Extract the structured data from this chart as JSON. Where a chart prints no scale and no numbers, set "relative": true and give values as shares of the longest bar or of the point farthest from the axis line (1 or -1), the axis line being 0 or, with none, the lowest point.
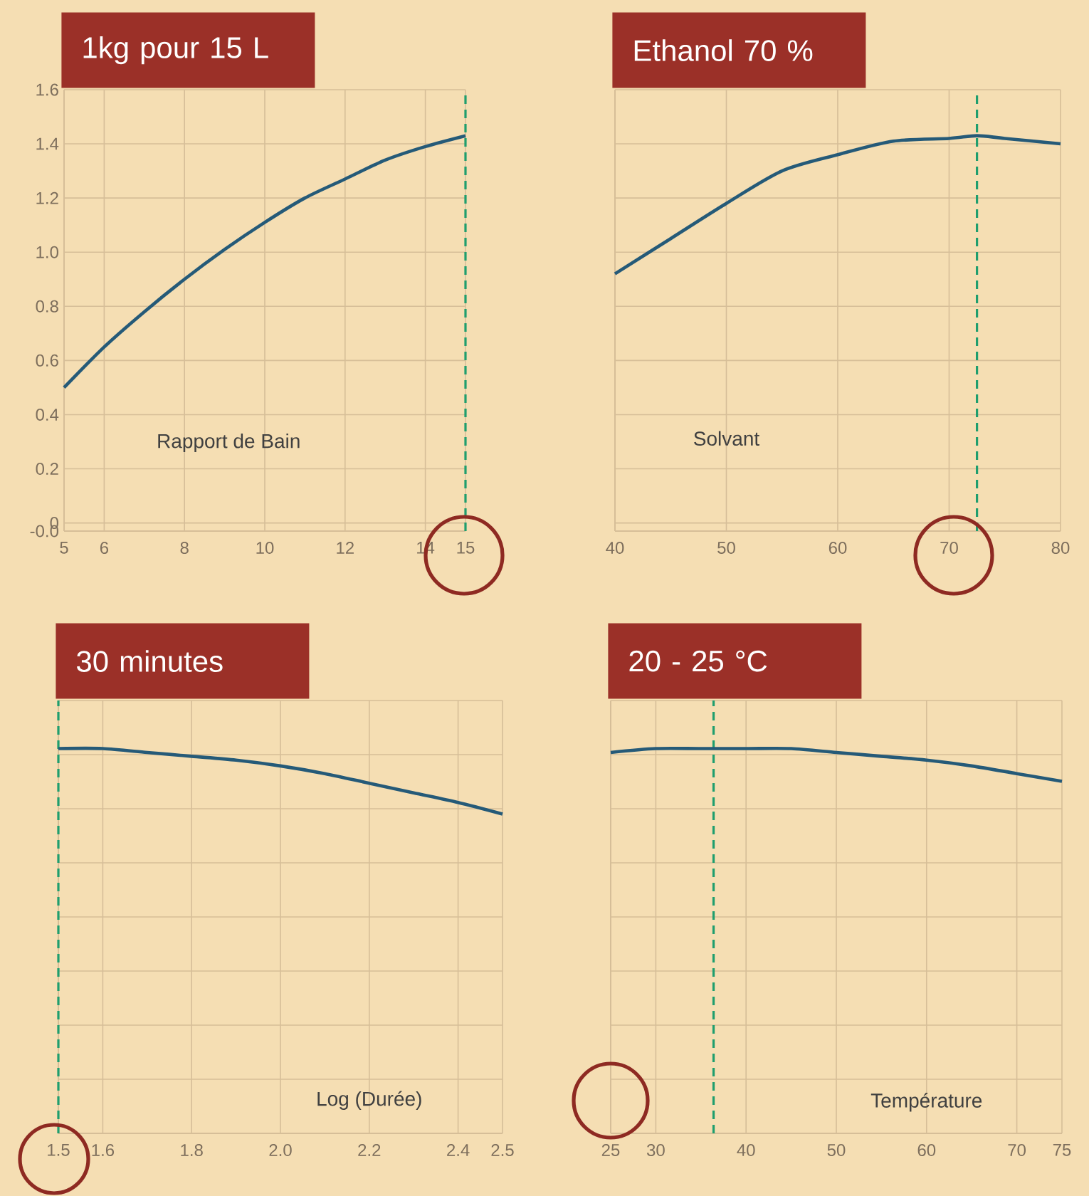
{
  "chart_data": [
    {
      "type": "line",
      "title": "1kg pour 15 L",
      "xlabel": "Rapport de Bain",
      "x": [
        5,
        6,
        7,
        8,
        9,
        10,
        11,
        12,
        13,
        14,
        15
      ],
      "series": [
        {
          "color": "#255a78",
          "values": [
            0.5,
            0.65,
            0.78,
            0.9,
            1.01,
            1.11,
            1.2,
            1.27,
            1.34,
            1.39,
            1.43
          ]
        }
      ],
      "xlim": [
        5,
        15
      ],
      "ylim": [
        -0.03,
        1.6
      ],
      "xticks": [
        5,
        6,
        8,
        10,
        12,
        14,
        15
      ],
      "yticks": [
        {
          "value": -0.03,
          "label": "-0.0"
        },
        0,
        0.2,
        0.4,
        0.6,
        0.8,
        {
          "value": 1,
          "label": "1.0"
        },
        1.2,
        1.4,
        1.6
      ],
      "grid": true,
      "ref_lines": [
        {
          "axis": "x",
          "value": 15,
          "color": "#1f9e6e",
          "line_style": "dashed"
        }
      ]
    },
    {
      "type": "line",
      "title": "Ethanol 70 %",
      "xlabel": "Solvant",
      "x": [
        40,
        45,
        50,
        55,
        60,
        65,
        70,
        72.5,
        75,
        80
      ],
      "series": [
        {
          "color": "#255a78",
          "values": [
            0.92,
            1.05,
            1.18,
            1.3,
            1.36,
            1.41,
            1.42,
            1.43,
            1.42,
            1.4
          ]
        }
      ],
      "xlim": [
        40,
        80
      ],
      "ylim": [
        -0.03,
        1.6
      ],
      "xticks": [
        40,
        50,
        60,
        70,
        80
      ],
      "yticks": [
        {
          "value": -0.03,
          "label": null
        },
        {
          "value": 0,
          "label": null
        },
        {
          "value": 0.2,
          "label": null
        },
        {
          "value": 0.4,
          "label": null
        },
        {
          "value": 0.6,
          "label": null
        },
        {
          "value": 0.8,
          "label": null
        },
        {
          "value": 1,
          "label": null
        },
        {
          "value": 1.2,
          "label": null
        },
        {
          "value": 1.4,
          "label": null
        },
        {
          "value": 1.6,
          "label": null
        }
      ],
      "grid": true,
      "tick_labels": "x",
      "ref_lines": [
        {
          "axis": "x",
          "value": 72.5,
          "color": "#1f9e6e",
          "line_style": "dashed"
        }
      ]
    },
    {
      "type": "line",
      "title": "30 minutes",
      "xlabel": "Log (Durée)",
      "x": [
        1.5,
        1.6,
        1.7,
        1.8,
        1.9,
        2.0,
        2.1,
        2.2,
        2.3,
        2.4,
        2.5
      ],
      "series": [
        {
          "color": "#255a78",
          "values": [
            1,
            1,
            0.99,
            0.98,
            0.97,
            0.955,
            0.935,
            0.91,
            0.885,
            0.86,
            0.83
          ]
        }
      ],
      "relative": true,
      "xlim": [
        1.5,
        2.5
      ],
      "xticks": [
        1.5,
        1.6,
        1.8,
        {
          "value": 2,
          "label": "2.0"
        },
        2.2,
        2.4,
        2.5
      ],
      "grid": true,
      "ref_lines": [
        {
          "axis": "x",
          "value": 1.5,
          "color": "#1f9e6e",
          "line_style": "dashed"
        }
      ]
    },
    {
      "type": "line",
      "title": "20 - 25 °C",
      "xlabel": "Température",
      "x": [
        25,
        30,
        35,
        40,
        45,
        50,
        55,
        60,
        65,
        70,
        75
      ],
      "series": [
        {
          "color": "#255a78",
          "values": [
            0.99,
            1,
            1,
            1,
            1,
            0.99,
            0.98,
            0.97,
            0.955,
            0.935,
            0.915
          ]
        }
      ],
      "relative": true,
      "xlim": [
        25,
        75
      ],
      "xticks": [
        25,
        30,
        40,
        50,
        60,
        70,
        75
      ],
      "grid": true,
      "ref_lines": [
        {
          "axis": "x",
          "value": 36.4,
          "color": "#1f9e6e",
          "line_style": "dashed"
        }
      ]
    }
  ]
}
